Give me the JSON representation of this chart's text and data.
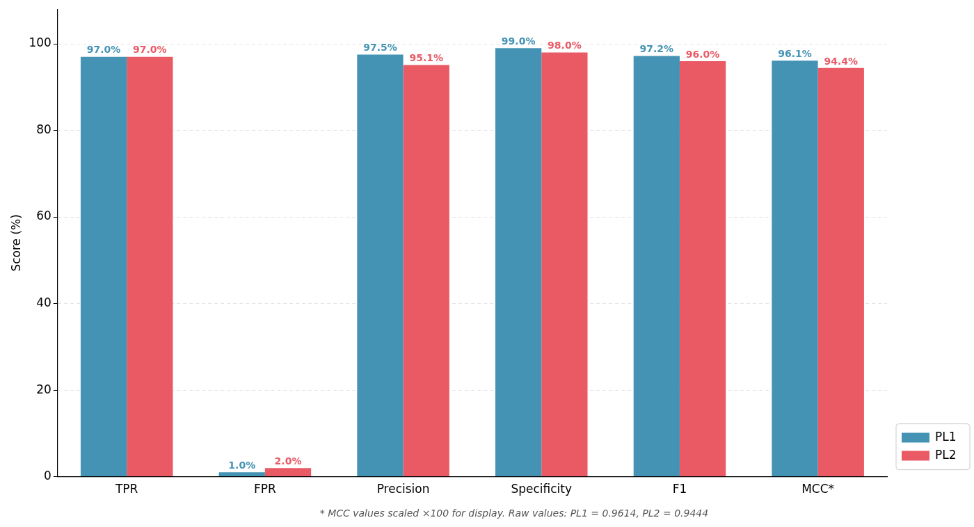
{
  "chart_data": {
    "type": "bar",
    "ylabel": "Score (%)",
    "categories": [
      "TPR",
      "FPR",
      "Precision",
      "Specificity",
      "F1",
      "MCC*"
    ],
    "series": [
      {
        "name": "PL1",
        "color": "#4493b4",
        "values": [
          97.0,
          1.0,
          97.5,
          99.0,
          97.2,
          96.1
        ],
        "value_labels": [
          "97.0%",
          "1.0%",
          "97.5%",
          "99.0%",
          "97.2%",
          "96.1%"
        ]
      },
      {
        "name": "PL2",
        "color": "#e95a65",
        "values": [
          97.0,
          2.0,
          95.1,
          98.0,
          96.0,
          94.4
        ],
        "value_labels": [
          "97.0%",
          "2.0%",
          "95.1%",
          "98.0%",
          "96.0%",
          "94.4%"
        ]
      }
    ],
    "ylim": [
      0,
      108
    ],
    "yticks": [
      0,
      20,
      40,
      60,
      80,
      100
    ],
    "grid": "y",
    "legend": "bottom right",
    "annotations": [
      "* MCC values scaled ×100 for display. Raw values: PL1 = 0.9614, PL2 = 0.9444"
    ]
  }
}
